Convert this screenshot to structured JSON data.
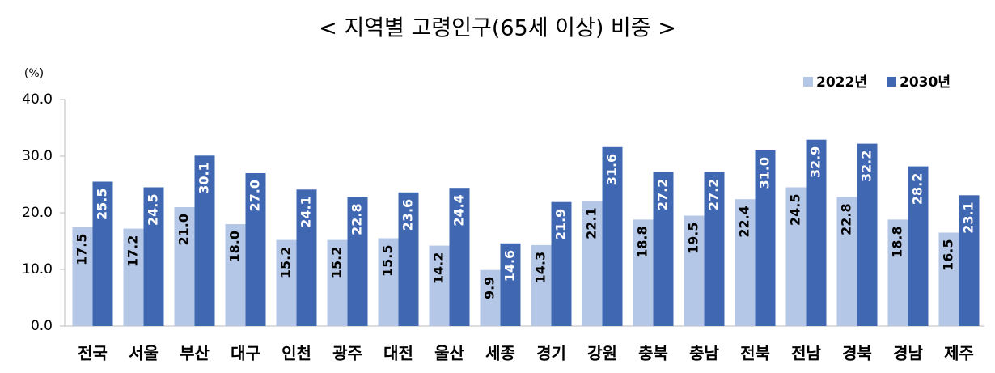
{
  "chart_data": {
    "type": "bar",
    "title": "< 지역별 고령인구(65세 이상) 비중 >",
    "y_unit": "(%)",
    "categories": [
      "전국",
      "서울",
      "부산",
      "대구",
      "인천",
      "광주",
      "대전",
      "울산",
      "세종",
      "경기",
      "강원",
      "충북",
      "충남",
      "전북",
      "전남",
      "경북",
      "경남",
      "제주"
    ],
    "series": [
      {
        "name": "2022년",
        "color": "#b4c7e7",
        "label_color": "#000000",
        "values": [
          17.5,
          17.2,
          21.0,
          18.0,
          15.2,
          15.2,
          15.5,
          14.2,
          9.9,
          14.3,
          22.1,
          18.8,
          19.5,
          22.4,
          24.5,
          22.8,
          18.8,
          16.5
        ],
        "value_labels": [
          "17.5",
          "17.2",
          "21.0",
          "18.0",
          "15.2",
          "15.2",
          "15.5",
          "14.2",
          "9.9",
          "14.3",
          "22.1",
          "18.8",
          "19.5",
          "22.4",
          "24.5",
          "22.8",
          "18.8",
          "16.5"
        ]
      },
      {
        "name": "2030년",
        "color": "#4068b2",
        "label_color": "#ffffff",
        "values": [
          25.5,
          24.5,
          30.1,
          27.0,
          24.1,
          22.8,
          23.6,
          24.4,
          14.6,
          21.9,
          31.6,
          27.2,
          27.2,
          31.0,
          32.9,
          32.2,
          28.2,
          23.1
        ],
        "value_labels": [
          "25.5",
          "24.5",
          "30.1",
          "27.0",
          "24.1",
          "22.8",
          "23.6",
          "24.4",
          "14.6",
          "21.9",
          "31.6",
          "27.2",
          "27.2",
          "31.0",
          "32.9",
          "32.2",
          "28.2",
          "23.1"
        ]
      }
    ],
    "ylim": [
      0,
      40
    ],
    "yticks": [
      {
        "value": 0,
        "label": "0.0"
      },
      {
        "value": 10,
        "label": "10.0"
      },
      {
        "value": 20,
        "label": "20.0"
      },
      {
        "value": 30,
        "label": "30.0"
      },
      {
        "value": 40,
        "label": "40.0"
      }
    ],
    "grid": false,
    "legend": "top-right"
  }
}
